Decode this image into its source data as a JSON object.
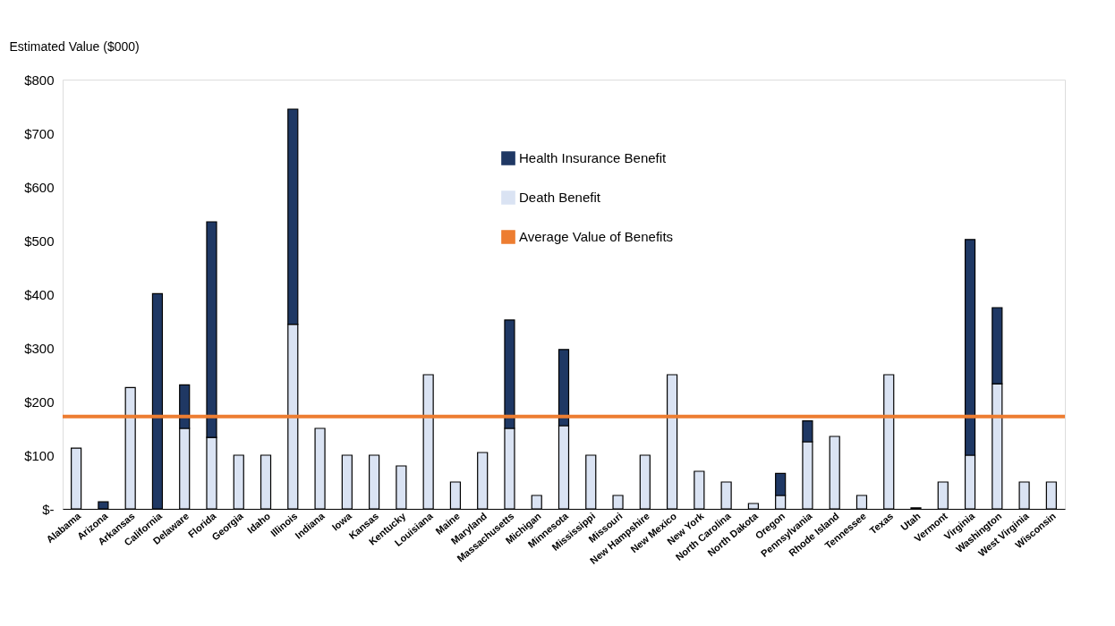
{
  "chart_data": {
    "type": "bar",
    "stacked": true,
    "ylabel": "Estimated Value ($000)",
    "categories": [
      "Alabama",
      "Arizona",
      "Arkansas",
      "California",
      "Delaware",
      "Florida",
      "Georgia",
      "Idaho",
      "Illinois",
      "Indiana",
      "Iowa",
      "Kansas",
      "Kentucky",
      "Louisiana",
      "Maine",
      "Maryland",
      "Massachusetts",
      "Michigan",
      "Minnesota",
      "Mississippi",
      "Missouri",
      "New Hampshire",
      "New Mexico",
      "New York",
      "North Carolina",
      "North Dakota",
      "Oregon",
      "Pennsylvania",
      "Rhode Island",
      "Tennessee",
      "Texas",
      "Utah",
      "Vermont",
      "Virginia",
      "Washington",
      "West Virginia",
      "Wisconsin"
    ],
    "series": [
      {
        "name": "Death Benefit",
        "color": "#dae3f3",
        "values": [
          113,
          0,
          226,
          0,
          150,
          133,
          100,
          100,
          344,
          150,
          100,
          100,
          80,
          250,
          50,
          105,
          150,
          25,
          155,
          100,
          25,
          100,
          250,
          70,
          50,
          10,
          25,
          125,
          135,
          25,
          250,
          2,
          50,
          100,
          233,
          50,
          50
        ]
      },
      {
        "name": "Health Insurance Benefit",
        "color": "#1f3864",
        "values": [
          0,
          13,
          0,
          401,
          81,
          402,
          0,
          0,
          401,
          0,
          0,
          0,
          0,
          0,
          0,
          0,
          202,
          0,
          142,
          0,
          0,
          0,
          0,
          0,
          0,
          0,
          41,
          39,
          0,
          0,
          0,
          0,
          0,
          402,
          142,
          0,
          0
        ]
      }
    ],
    "ref_lines": [
      {
        "axis": "y",
        "value": 172,
        "label": "Average Value of Benefits",
        "color": "#ed7d31"
      }
    ],
    "ylim": [
      0,
      800
    ],
    "yticks": [
      {
        "value": 0,
        "label": "$-"
      },
      {
        "value": 100,
        "label": "$100"
      },
      {
        "value": 200,
        "label": "$200"
      },
      {
        "value": 300,
        "label": "$300"
      },
      {
        "value": 400,
        "label": "$400"
      },
      {
        "value": 500,
        "label": "$500"
      },
      {
        "value": 600,
        "label": "$600"
      },
      {
        "value": 700,
        "label": "$700"
      },
      {
        "value": 800,
        "label": "$800"
      }
    ],
    "grid": false,
    "legend": "top"
  }
}
